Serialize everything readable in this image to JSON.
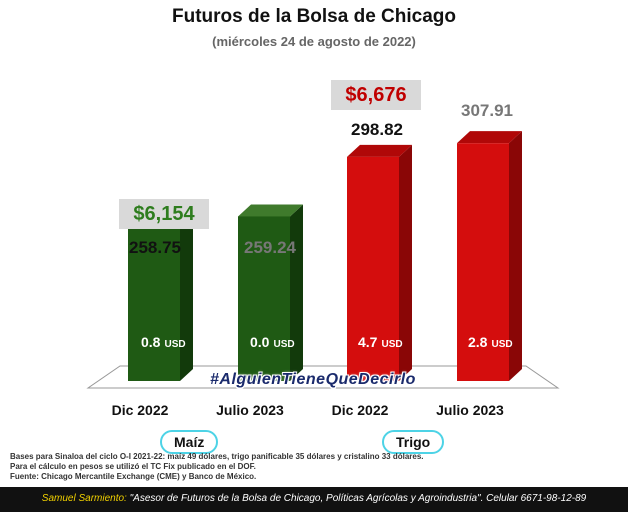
{
  "title": "Futuros de la Bolsa de Chicago",
  "subtitle": "(miércoles 24 de agosto de 2022)",
  "colors": {
    "green": "#1f5a14",
    "red": "#d40d0d",
    "price_green": "#2e7d1e",
    "price_red": "#c00000"
  },
  "chart_data": {
    "type": "bar",
    "categories": [
      "Dic 2022",
      "Julio 2023",
      "Dic 2022",
      "Julio 2023"
    ],
    "groups": [
      {
        "label": "Maíz",
        "categories": [
          "Dic 2022",
          "Julio 2023"
        ]
      },
      {
        "label": "Trigo",
        "categories": [
          "Dic 2022",
          "Julio 2023"
        ]
      }
    ],
    "values": [
      258.75,
      259.24,
      298.82,
      307.91
    ],
    "value_labels": [
      "258.75",
      "259.24",
      "298.82",
      "307.91"
    ],
    "changes": [
      "0.8",
      "0.0",
      "4.7",
      "2.8"
    ],
    "change_unit": "USD",
    "prices": [
      "$6,154",
      "",
      "$6,676",
      ""
    ],
    "ylim": [
      150,
      310
    ]
  },
  "hashtag": "#AlguienTieneQueDecirlo",
  "notes": [
    "Bases para Sinaloa del ciclo O-I 2021-22: maíz 49 dólares, trigo panificable 35 dólares y cristalino 33 dólares.",
    "Para el cálculo en pesos se utilizó el TC Fix publicado en el DOF.",
    "Fuente: Chicago Mercantile Exchange (CME) y Banco de México."
  ],
  "footer": {
    "name": "Samuel Sarmiento:",
    "text": " \"Asesor de Futuros de la Bolsa de Chicago, Políticas Agrícolas y Agroindustria\". Celular 6671-98-12-89"
  }
}
